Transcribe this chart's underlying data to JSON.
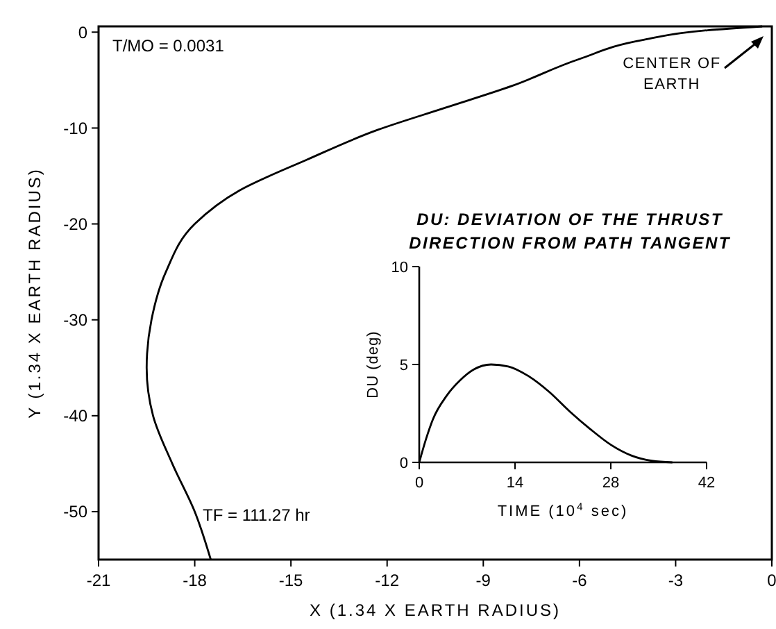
{
  "chart_data": [
    {
      "type": "line",
      "xlabel": "X (1.34 X EARTH RADIUS)",
      "ylabel": "Y (1.34 X EARTH RADIUS)",
      "xlim": [
        -21,
        0
      ],
      "ylim": [
        -55,
        0.6
      ],
      "xticks": [
        -21,
        -18,
        -15,
        -12,
        -9,
        -6,
        -3,
        0
      ],
      "yticks": [
        0,
        -10,
        -20,
        -30,
        -40,
        -50
      ],
      "series": [
        {
          "color": "#000000",
          "x": [
            -17.5,
            -18.0,
            -18.7,
            -19.3,
            -19.5,
            -19.35,
            -18.9,
            -18.0,
            -16.6,
            -14.5,
            -12.3,
            -10.2,
            -8.1,
            -6.0,
            -4.0,
            -2.0,
            -0.3
          ],
          "values": [
            -55,
            -50,
            -45,
            -40,
            -35,
            -30,
            -25,
            -20,
            -16.5,
            -13.3,
            -10.2,
            -7.9,
            -5.6,
            -2.8,
            -0.8,
            0.2,
            0.6
          ]
        }
      ],
      "annotations": [
        "T/MO = 0.0031",
        "TF = 111.27 hr",
        "CENTER OF EARTH"
      ]
    },
    {
      "type": "line",
      "title": "DU:  DEVIATION OF THE THRUST DIRECTION FROM PATH TANGENT",
      "xlabel": "TIME (10$^{4}$ sec)",
      "ylabel": "DU (deg)",
      "xlim": [
        0,
        42
      ],
      "ylim": [
        0,
        10
      ],
      "xticks": [
        0,
        14,
        28,
        42
      ],
      "yticks": [
        0,
        5,
        10
      ],
      "series": [
        {
          "color": "#000000",
          "x": [
            0,
            1,
            2,
            4,
            6,
            8,
            10.5,
            13,
            16,
            19,
            22,
            25,
            28,
            31,
            34,
            37
          ],
          "values": [
            0,
            1.2,
            2.2,
            3.4,
            4.2,
            4.75,
            5,
            4.9,
            4.4,
            3.6,
            2.6,
            1.7,
            0.9,
            0.35,
            0.08,
            0
          ]
        }
      ]
    }
  ]
}
